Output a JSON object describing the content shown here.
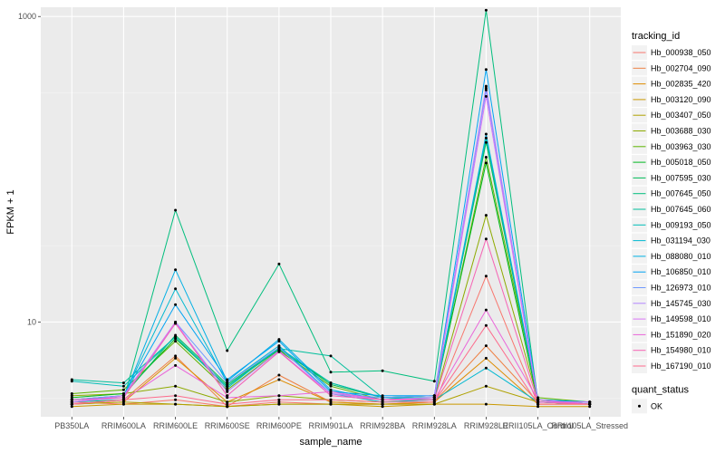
{
  "chart_data": {
    "type": "line",
    "xlabel": "sample_name",
    "ylabel": "FPKM + 1",
    "y_scale": "log10",
    "ylim": [
      2.4,
      1150
    ],
    "y_ticks": [
      {
        "value": 1000,
        "label": "1000"
      },
      {
        "value": 10,
        "label": "10"
      }
    ],
    "grid": true,
    "legend_position": "right",
    "categories": [
      "PB350LA",
      "RRIM600LA",
      "RRIM600LE",
      "RRIM600SE",
      "RRIM600PE",
      "RRIM901LA",
      "RRIM928BA",
      "RRIM928LA",
      "RRIM928LE",
      "RRII105LA_Control",
      "RRII105LA_Stressed"
    ],
    "legend_title": "tracking_id",
    "series": [
      {
        "name": "Hb_000938_050",
        "color": "#F8766D",
        "values": [
          3.0,
          2.9,
          3.1,
          2.8,
          3.0,
          2.9,
          2.9,
          2.9,
          20,
          2.9,
          2.9
        ]
      },
      {
        "name": "Hb_002704_090",
        "color": "#EE8043",
        "values": [
          2.9,
          3.1,
          6.0,
          2.8,
          4.5,
          3.0,
          2.9,
          3.0,
          7.0,
          3.0,
          2.9
        ]
      },
      {
        "name": "Hb_002835_420",
        "color": "#DE8C00",
        "values": [
          2.9,
          3.0,
          5.8,
          3.0,
          4.2,
          3.0,
          2.9,
          3.0,
          5.8,
          2.9,
          2.9
        ]
      },
      {
        "name": "Hb_003120_090",
        "color": "#C99800",
        "values": [
          2.8,
          2.9,
          2.9,
          2.8,
          2.9,
          2.9,
          2.8,
          2.9,
          2.9,
          2.8,
          2.8
        ]
      },
      {
        "name": "Hb_003407_050",
        "color": "#AFA100",
        "values": [
          2.9,
          3.0,
          2.9,
          2.8,
          2.9,
          2.9,
          2.9,
          2.9,
          3.8,
          3.0,
          2.9
        ]
      },
      {
        "name": "Hb_003688_030",
        "color": "#8DAA00",
        "values": [
          3.3,
          3.4,
          3.8,
          3.0,
          3.3,
          3.1,
          3.0,
          3.1,
          50,
          3.1,
          2.9
        ]
      },
      {
        "name": "Hb_003963_030",
        "color": "#5DB300",
        "values": [
          3.4,
          3.6,
          7.5,
          3.6,
          6.5,
          3.8,
          3.1,
          3.2,
          120,
          3.2,
          3.0
        ]
      },
      {
        "name": "Hb_005018_050",
        "color": "#00B81F",
        "values": [
          3.2,
          3.4,
          7.8,
          3.8,
          6.6,
          4.0,
          3.2,
          3.3,
          110,
          3.0,
          2.9
        ]
      },
      {
        "name": "Hb_007595_030",
        "color": "#00BC59",
        "values": [
          3.1,
          3.3,
          8.2,
          3.9,
          6.7,
          3.9,
          3.2,
          3.3,
          150,
          3.1,
          2.9
        ]
      },
      {
        "name": "Hb_007645_050",
        "color": "#00BE7D",
        "values": [
          3.0,
          3.1,
          54,
          6.5,
          24,
          4.7,
          4.8,
          4.1,
          1100,
          3.0,
          2.9
        ]
      },
      {
        "name": "Hb_007645_060",
        "color": "#00BF9C",
        "values": [
          4.2,
          4.0,
          8.0,
          3.8,
          6.7,
          6.0,
          3.2,
          3.1,
          160,
          3.1,
          3.0
        ]
      },
      {
        "name": "Hb_009193_050",
        "color": "#00BDB8",
        "values": [
          4.1,
          3.8,
          8.0,
          3.7,
          6.8,
          4.0,
          3.2,
          3.2,
          340,
          3.0,
          3.0
        ]
      },
      {
        "name": "Hb_031194_030",
        "color": "#00B8D0",
        "values": [
          3.0,
          3.3,
          16.5,
          4.0,
          7.0,
          3.4,
          3.0,
          3.1,
          5.0,
          3.0,
          2.9
        ]
      },
      {
        "name": "Hb_088080_010",
        "color": "#00AFE4",
        "values": [
          3.1,
          3.2,
          22,
          4.1,
          7.7,
          3.6,
          3.1,
          3.2,
          170,
          3.1,
          3.0
        ]
      },
      {
        "name": "Hb_106850_010",
        "color": "#00A3F3",
        "values": [
          3.1,
          3.3,
          13,
          4.2,
          7.5,
          3.5,
          3.3,
          3.3,
          450,
          3.1,
          3.0
        ]
      },
      {
        "name": "Hb_126973_010",
        "color": "#6F99FF",
        "values": [
          3.1,
          3.3,
          10,
          4.0,
          6.8,
          3.4,
          3.2,
          3.3,
          330,
          3.0,
          3.0
        ]
      },
      {
        "name": "Hb_145745_030",
        "color": "#B385FF",
        "values": [
          3.0,
          3.2,
          9.8,
          3.5,
          6.5,
          3.3,
          3.1,
          3.2,
          350,
          3.0,
          2.9
        ]
      },
      {
        "name": "Hb_149598_010",
        "color": "#D974F5",
        "values": [
          3.0,
          3.3,
          10,
          3.3,
          6.4,
          3.4,
          3.1,
          3.2,
          300,
          3.0,
          3.0
        ]
      },
      {
        "name": "Hb_151890_020",
        "color": "#EA66D9",
        "values": [
          2.9,
          3.1,
          5.2,
          3.2,
          3.3,
          3.5,
          3.1,
          3.1,
          12,
          3.1,
          2.9
        ]
      },
      {
        "name": "Hb_154980_010",
        "color": "#F664B4",
        "values": [
          3.1,
          3.2,
          9.8,
          3.3,
          6.4,
          3.3,
          3.1,
          3.1,
          35,
          3.0,
          2.9
        ]
      },
      {
        "name": "Hb_167190_010",
        "color": "#FD6B8C",
        "values": [
          2.9,
          3.1,
          3.3,
          2.9,
          3.1,
          3.1,
          3.0,
          3.0,
          9.5,
          2.9,
          2.9
        ]
      }
    ],
    "legend2_title": "quant_status",
    "legend2_items": [
      {
        "label": "OK",
        "marker": "point"
      }
    ]
  }
}
